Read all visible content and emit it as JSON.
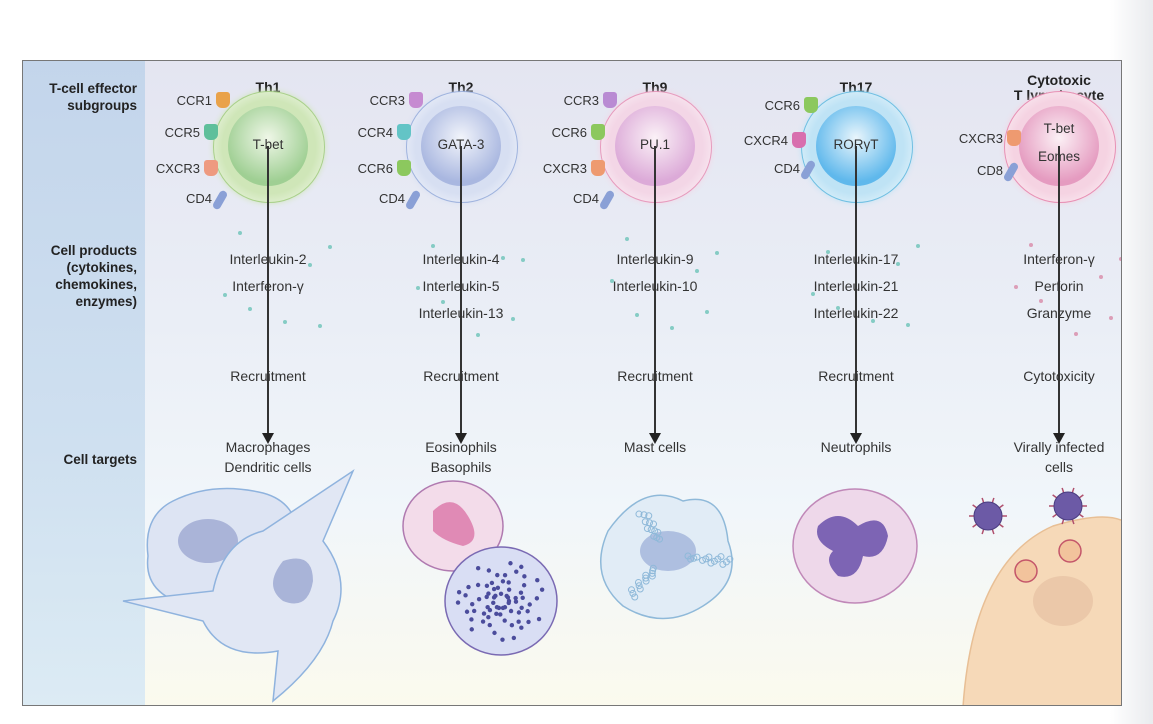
{
  "row_labels": {
    "subgroups": "T-cell effector\nsubgroups",
    "products": "Cell products\n(cytokines,\nchemokines,\nenzymes)",
    "targets": "Cell targets"
  },
  "columns": [
    {
      "title": "Th1",
      "cell_color": "#cfe6b8",
      "membrane_color": "#a9d08a",
      "nucleus_color": "#9fcf93",
      "nucleus_labels": [
        "T-bet"
      ],
      "receptors": [
        {
          "label": "CCR1",
          "color": "#e9a24a"
        },
        {
          "label": "CCR5",
          "color": "#5fbf9b"
        },
        {
          "label": "CXCR3",
          "color": "#ee9a80"
        },
        {
          "label": "CD4",
          "color": "#8aa0d6"
        }
      ],
      "products": [
        "Interleukin-2",
        "Interferon-γ"
      ],
      "action": "Recruitment",
      "targets": [
        "Macrophages",
        "Dendritic cells"
      ],
      "dot_color": "#6cc3b8"
    },
    {
      "title": "Th2",
      "cell_color": "#d7dff2",
      "membrane_color": "#9fb3de",
      "nucleus_color": "#a9b7e0",
      "nucleus_labels": [
        "GATA-3"
      ],
      "receptors": [
        {
          "label": "CCR3",
          "color": "#c68bd1"
        },
        {
          "label": "CCR4",
          "color": "#63c4c6"
        },
        {
          "label": "CCR6",
          "color": "#8cc85e"
        },
        {
          "label": "CD4",
          "color": "#8aa0d6"
        }
      ],
      "products": [
        "Interleukin-4",
        "Interleukin-5",
        "Interleukin-13"
      ],
      "action": "Recruitment",
      "targets": [
        "Eosinophils",
        "Basophils"
      ],
      "dot_color": "#6cc3b8"
    },
    {
      "title": "Th9",
      "cell_color": "#f3d6e6",
      "membrane_color": "#e79bbd",
      "nucleus_color": "#dcaad8",
      "nucleus_labels": [
        "PU.1"
      ],
      "receptors": [
        {
          "label": "CCR3",
          "color": "#b98bd3"
        },
        {
          "label": "CCR6",
          "color": "#8cc85e"
        },
        {
          "label": "CXCR3",
          "color": "#ee9a70"
        },
        {
          "label": "CD4",
          "color": "#8aa0d6"
        }
      ],
      "products": [
        "Interleukin-9",
        "Interleukin-10"
      ],
      "action": "Recruitment",
      "targets": [
        "Mast cells"
      ],
      "dot_color": "#6cc3b8"
    },
    {
      "title": "Th17",
      "cell_color": "#bfe3f5",
      "membrane_color": "#6fbfe2",
      "nucleus_color": "#5fb8ec",
      "nucleus_labels": [
        "RORγT"
      ],
      "receptors": [
        {
          "label": "CCR6",
          "color": "#8cc85e"
        },
        {
          "label": "CXCR4",
          "color": "#d86fae"
        },
        {
          "label": "CD4",
          "color": "#8aa0d6"
        }
      ],
      "products": [
        "Interleukin-17",
        "Interleukin-21",
        "Interleukin-22"
      ],
      "action": "Recruitment",
      "targets": [
        "Neutrophils"
      ],
      "dot_color": "#6cc3b8"
    },
    {
      "title": "Cytotoxic\nT lymphocyte",
      "cell_color": "#f5d3e2",
      "membrane_color": "#e890b4",
      "nucleus_color": "#e59bc0",
      "nucleus_labels": [
        "T-bet",
        "Eomes"
      ],
      "receptors": [
        {
          "label": "CXCR3",
          "color": "#ee9a70"
        },
        {
          "label": "CD8",
          "color": "#8aa0d6"
        }
      ],
      "products": [
        "Interferon-γ",
        "Perforin",
        "Granzyme"
      ],
      "action": "Cytotoxicity",
      "targets": [
        "Virally infected",
        "cells"
      ],
      "dot_color": "#d889a8"
    }
  ]
}
